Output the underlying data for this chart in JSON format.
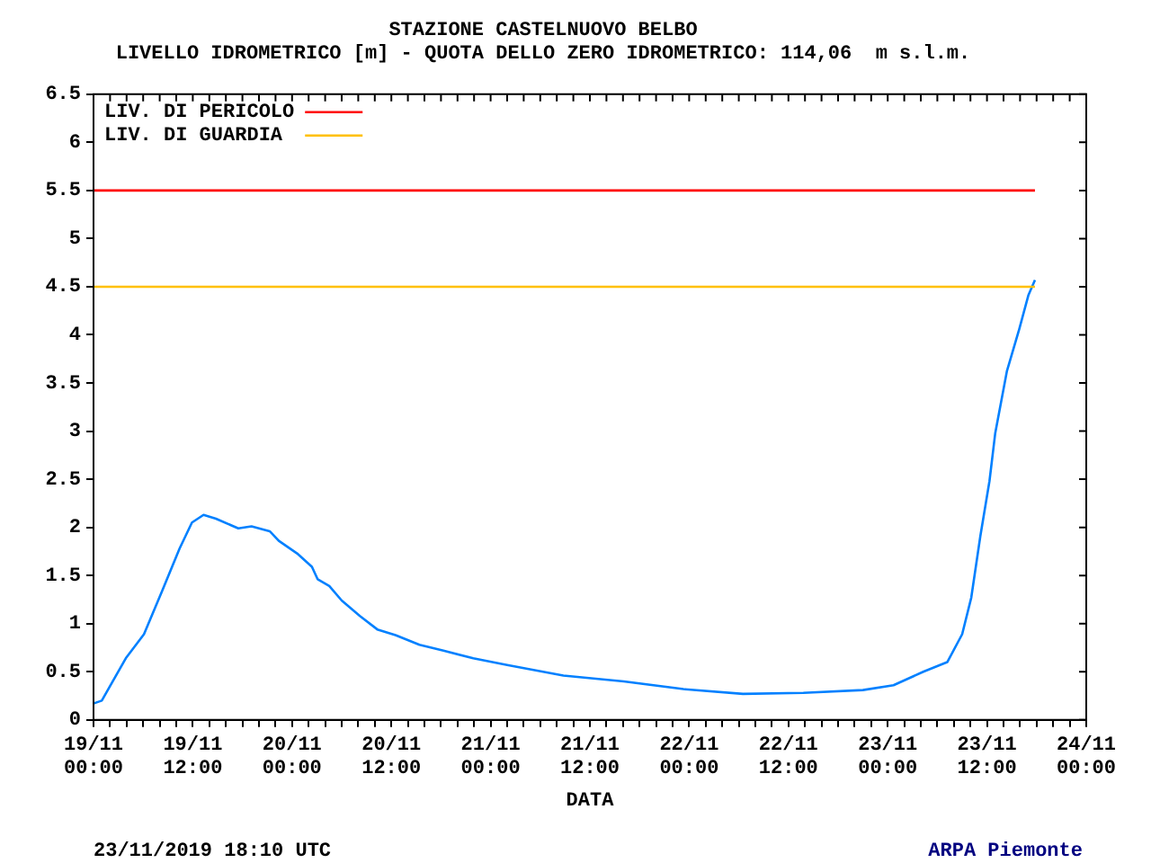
{
  "chart_data": {
    "type": "line",
    "title": "STAZIONE CASTELNUOVO BELBO",
    "subtitle": "LIVELLO IDROMETRICO [m] - QUOTA DELLO ZERO IDROMETRICO: 114,06  m s.l.m.",
    "xlabel": "DATA",
    "annotations": [
      "23/11/2019 18:10 UTC",
      "ARPA Piemonte"
    ],
    "xlim": [
      "2019-11-19T00:00",
      "2019-11-24T00:00"
    ],
    "xticks": [
      {
        "value": "2019-11-19T00:00",
        "label": "19/11 00:00"
      },
      {
        "value": "2019-11-19T02:00",
        "label": null
      },
      {
        "value": "2019-11-19T04:00",
        "label": null
      },
      {
        "value": "2019-11-19T06:00",
        "label": null
      },
      {
        "value": "2019-11-19T08:00",
        "label": null
      },
      {
        "value": "2019-11-19T10:00",
        "label": null
      },
      {
        "value": "2019-11-19T12:00",
        "label": "19/11 12:00"
      },
      {
        "value": "2019-11-19T14:00",
        "label": null
      },
      {
        "value": "2019-11-19T16:00",
        "label": null
      },
      {
        "value": "2019-11-19T18:00",
        "label": null
      },
      {
        "value": "2019-11-19T20:00",
        "label": null
      },
      {
        "value": "2019-11-19T22:00",
        "label": null
      },
      {
        "value": "2019-11-20T00:00",
        "label": "20/11 00:00"
      },
      {
        "value": "2019-11-20T02:00",
        "label": null
      },
      {
        "value": "2019-11-20T04:00",
        "label": null
      },
      {
        "value": "2019-11-20T06:00",
        "label": null
      },
      {
        "value": "2019-11-20T08:00",
        "label": null
      },
      {
        "value": "2019-11-20T10:00",
        "label": null
      },
      {
        "value": "2019-11-20T12:00",
        "label": "20/11 12:00"
      },
      {
        "value": "2019-11-20T14:00",
        "label": null
      },
      {
        "value": "2019-11-20T16:00",
        "label": null
      },
      {
        "value": "2019-11-20T18:00",
        "label": null
      },
      {
        "value": "2019-11-20T20:00",
        "label": null
      },
      {
        "value": "2019-11-20T22:00",
        "label": null
      },
      {
        "value": "2019-11-21T00:00",
        "label": "21/11 00:00"
      },
      {
        "value": "2019-11-21T02:00",
        "label": null
      },
      {
        "value": "2019-11-21T04:00",
        "label": null
      },
      {
        "value": "2019-11-21T06:00",
        "label": null
      },
      {
        "value": "2019-11-21T08:00",
        "label": null
      },
      {
        "value": "2019-11-21T10:00",
        "label": null
      },
      {
        "value": "2019-11-21T12:00",
        "label": "21/11 12:00"
      },
      {
        "value": "2019-11-21T14:00",
        "label": null
      },
      {
        "value": "2019-11-21T16:00",
        "label": null
      },
      {
        "value": "2019-11-21T18:00",
        "label": null
      },
      {
        "value": "2019-11-21T20:00",
        "label": null
      },
      {
        "value": "2019-11-21T22:00",
        "label": null
      },
      {
        "value": "2019-11-22T00:00",
        "label": "22/11 00:00"
      },
      {
        "value": "2019-11-22T02:00",
        "label": null
      },
      {
        "value": "2019-11-22T04:00",
        "label": null
      },
      {
        "value": "2019-11-22T06:00",
        "label": null
      },
      {
        "value": "2019-11-22T08:00",
        "label": null
      },
      {
        "value": "2019-11-22T10:00",
        "label": null
      },
      {
        "value": "2019-11-22T12:00",
        "label": "22/11 12:00"
      },
      {
        "value": "2019-11-22T14:00",
        "label": null
      },
      {
        "value": "2019-11-22T16:00",
        "label": null
      },
      {
        "value": "2019-11-22T18:00",
        "label": null
      },
      {
        "value": "2019-11-22T20:00",
        "label": null
      },
      {
        "value": "2019-11-22T22:00",
        "label": null
      },
      {
        "value": "2019-11-23T00:00",
        "label": "23/11 00:00"
      },
      {
        "value": "2019-11-23T02:00",
        "label": null
      },
      {
        "value": "2019-11-23T04:00",
        "label": null
      },
      {
        "value": "2019-11-23T06:00",
        "label": null
      },
      {
        "value": "2019-11-23T08:00",
        "label": null
      },
      {
        "value": "2019-11-23T10:00",
        "label": null
      },
      {
        "value": "2019-11-23T12:00",
        "label": "23/11 12:00"
      },
      {
        "value": "2019-11-23T14:00",
        "label": null
      },
      {
        "value": "2019-11-23T16:00",
        "label": null
      },
      {
        "value": "2019-11-23T18:00",
        "label": null
      },
      {
        "value": "2019-11-23T20:00",
        "label": null
      },
      {
        "value": "2019-11-23T22:00",
        "label": null
      },
      {
        "value": "2019-11-24T00:00",
        "label": "24/11 00:00"
      }
    ],
    "ylim": [
      0,
      6.5
    ],
    "yticks": [
      0,
      0.5,
      1,
      1.5,
      2,
      2.5,
      3,
      3.5,
      4,
      4.5,
      5,
      5.5,
      6,
      6.5
    ],
    "grid": false,
    "legend": "top left",
    "marker": "none",
    "line_style": "solid",
    "series": [
      {
        "name": "LIV. DI PERICOLO",
        "color": "#ff0000",
        "x": [
          "2019-11-19T00:00",
          "2019-11-23T17:48"
        ],
        "values": [
          5.5,
          5.5
        ]
      },
      {
        "name": "LIV. DI GUARDIA",
        "color": "#ffc000",
        "x": [
          "2019-11-19T00:00",
          "2019-11-23T17:48"
        ],
        "values": [
          4.5,
          4.5
        ]
      },
      {
        "color": "#0080ff",
        "x": [
          "2019-11-19T00:00",
          "2019-11-19T01:00",
          "2019-11-19T03:54",
          "2019-11-19T06:06",
          "2019-11-19T08:18",
          "2019-11-19T10:24",
          "2019-11-19T11:54",
          "2019-11-19T13:18",
          "2019-11-19T14:48",
          "2019-11-19T17:30",
          "2019-11-19T19:06",
          "2019-11-19T21:18",
          "2019-11-19T22:24",
          "2019-11-20T00:36",
          "2019-11-20T02:24",
          "2019-11-20T03:06",
          "2019-11-20T04:30",
          "2019-11-20T06:00",
          "2019-11-20T08:12",
          "2019-11-20T10:18",
          "2019-11-20T12:30",
          "2019-11-20T15:24",
          "2019-11-20T18:18",
          "2019-11-20T21:54",
          "2019-11-21T02:00",
          "2019-11-21T08:48",
          "2019-11-21T16:06",
          "2019-11-21T23:18",
          "2019-11-22T06:30",
          "2019-11-22T13:48",
          "2019-11-22T21:00",
          "2019-11-23T00:42",
          "2019-11-23T04:18",
          "2019-11-23T07:12",
          "2019-11-23T09:00",
          "2019-11-23T10:06",
          "2019-11-23T11:12",
          "2019-11-23T12:18",
          "2019-11-23T13:00",
          "2019-11-23T14:24",
          "2019-11-23T15:54",
          "2019-11-23T17:00",
          "2019-11-23T17:48"
        ],
        "values": [
          0.17,
          0.2,
          0.64,
          0.89,
          1.34,
          1.78,
          2.05,
          2.13,
          2.09,
          1.99,
          2.01,
          1.96,
          1.86,
          1.73,
          1.59,
          1.46,
          1.39,
          1.24,
          1.08,
          0.94,
          0.88,
          0.78,
          0.72,
          0.64,
          0.57,
          0.46,
          0.4,
          0.32,
          0.27,
          0.28,
          0.31,
          0.36,
          0.5,
          0.6,
          0.89,
          1.27,
          1.91,
          2.48,
          2.98,
          3.62,
          4.06,
          4.41,
          4.57
        ]
      }
    ]
  }
}
